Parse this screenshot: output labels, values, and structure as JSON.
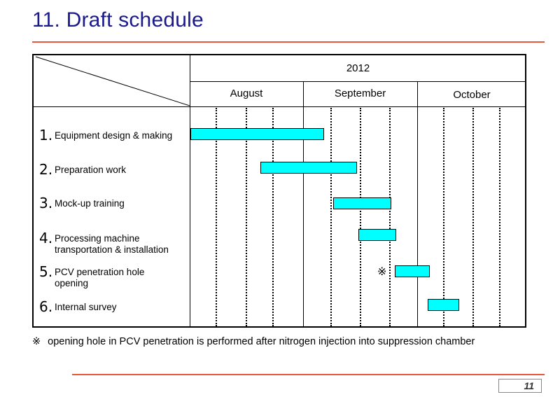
{
  "slide": {
    "title": "11. Draft schedule",
    "page_number": "11"
  },
  "schedule": {
    "year": "2012",
    "months": [
      "August",
      "September",
      "October"
    ],
    "tasks": [
      {
        "num": "1.",
        "label": "Equipment design & making",
        "label2": ""
      },
      {
        "num": "2.",
        "label": "Preparation work",
        "label2": ""
      },
      {
        "num": "3.",
        "label": "Mock-up training",
        "label2": ""
      },
      {
        "num": "4.",
        "label": "Processing machine",
        "label2": "transportation & installation"
      },
      {
        "num": "5.",
        "label": "PCV penetration hole",
        "label2": "opening"
      },
      {
        "num": "6.",
        "label": "Internal survey",
        "label2": ""
      }
    ],
    "marker": "※"
  },
  "footnote": {
    "mark": "※",
    "text": "opening hole in PCV penetration is performed after nitrogen injection into suppression chamber"
  },
  "colors": {
    "title": "#1a1a8c",
    "rule": "#e8573c",
    "bar": "#00ffff"
  }
}
